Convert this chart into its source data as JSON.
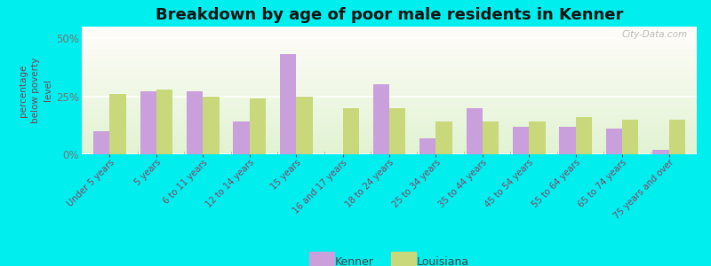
{
  "title": "Breakdown by age of poor male residents in Kenner",
  "ylabel": "percentage\nbelow poverty\nlevel",
  "categories": [
    "Under 5 years",
    "5 years",
    "6 to 11 years",
    "12 to 14 years",
    "15 years",
    "16 and 17 years",
    "18 to 24 years",
    "25 to 34 years",
    "35 to 44 years",
    "45 to 54 years",
    "55 to 64 years",
    "65 to 74 years",
    "75 years and over"
  ],
  "kenner": [
    10,
    27,
    27,
    14,
    43,
    0,
    30,
    7,
    20,
    12,
    12,
    11,
    2
  ],
  "louisiana": [
    26,
    28,
    25,
    24,
    25,
    20,
    20,
    14,
    14,
    14,
    16,
    15,
    15
  ],
  "kenner_color": "#c9a0dc",
  "louisiana_color": "#c8d87a",
  "outer_bg": "#00eeee",
  "ylim": [
    0,
    55
  ],
  "yticks": [
    0,
    25,
    50
  ],
  "ytick_labels": [
    "0%",
    "25%",
    "50%"
  ],
  "title_fontsize": 13,
  "watermark": "City-Data.com"
}
